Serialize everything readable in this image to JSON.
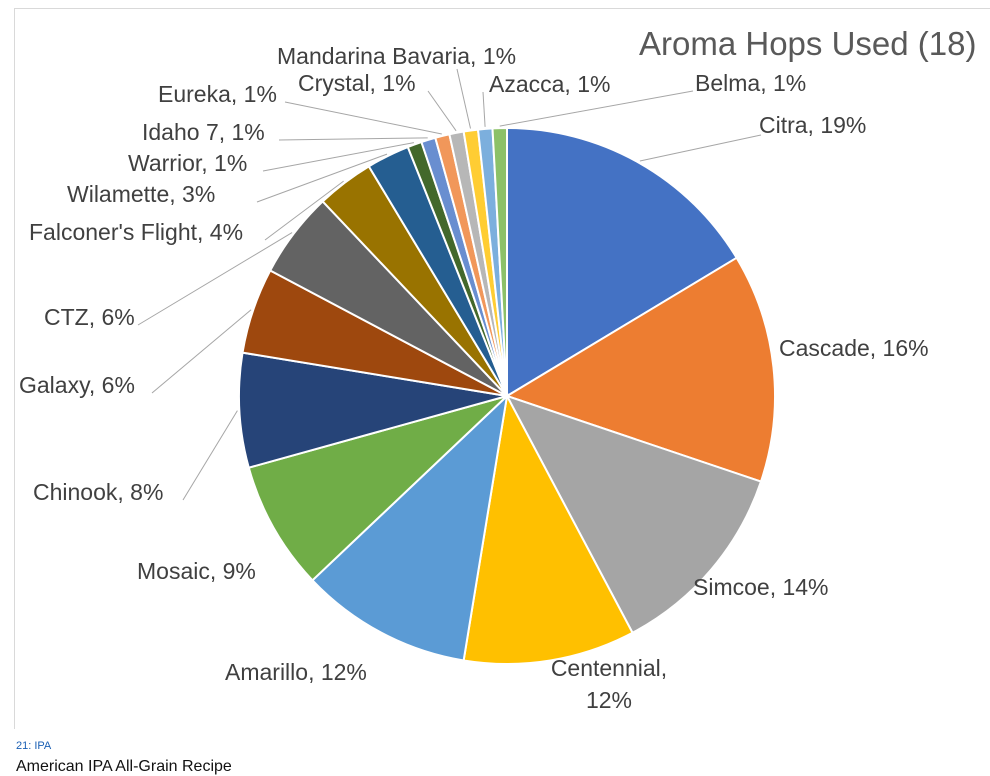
{
  "chart_data": {
    "type": "pie",
    "title": "Aroma Hops Used (18)",
    "slices": [
      {
        "label": "Citra",
        "value": 19,
        "color": "#4472C4",
        "text": "Citra, 19%"
      },
      {
        "label": "Cascade",
        "value": 16,
        "color": "#ED7D31",
        "text": "Cascade, 16%"
      },
      {
        "label": "Simcoe",
        "value": 14,
        "color": "#A5A5A5",
        "text": "Simcoe, 14%"
      },
      {
        "label": "Centennial",
        "value": 12,
        "color": "#FFC000",
        "text": "Centennial,\n12%"
      },
      {
        "label": "Amarillo",
        "value": 12,
        "color": "#5B9BD5",
        "text": "Amarillo, 12%"
      },
      {
        "label": "Mosaic",
        "value": 9,
        "color": "#70AD47",
        "text": "Mosaic, 9%"
      },
      {
        "label": "Chinook",
        "value": 8,
        "color": "#264478",
        "text": "Chinook, 8%"
      },
      {
        "label": "Galaxy",
        "value": 6,
        "color": "#9E480E",
        "text": "Galaxy, 6%"
      },
      {
        "label": "CTZ",
        "value": 6,
        "color": "#636363",
        "text": "CTZ, 6%"
      },
      {
        "label": "Falconer's Flight",
        "value": 4,
        "color": "#997300",
        "text": "Falconer's Flight, 4%"
      },
      {
        "label": "Wilamette",
        "value": 3,
        "color": "#255E91",
        "text": "Wilamette, 3%"
      },
      {
        "label": "Warrior",
        "value": 1,
        "color": "#43682B",
        "text": "Warrior, 1%"
      },
      {
        "label": "Idaho 7",
        "value": 1,
        "color": "#698ED0",
        "text": "Idaho 7, 1%"
      },
      {
        "label": "Eureka",
        "value": 1,
        "color": "#F1975A",
        "text": "Eureka, 1%"
      },
      {
        "label": "Crystal",
        "value": 1,
        "color": "#B7B7B7",
        "text": "Crystal, 1%"
      },
      {
        "label": "Mandarina Bavaria",
        "value": 1,
        "color": "#FFCD33",
        "text": "Mandarina Bavaria, 1%"
      },
      {
        "label": "Azacca",
        "value": 1,
        "color": "#7CAFDD",
        "text": "Azacca, 1%"
      },
      {
        "label": "Belma",
        "value": 1,
        "color": "#8CC168",
        "text": "Belma, 1%"
      }
    ]
  },
  "caption": {
    "category": "21: IPA",
    "title": "American IPA All-Grain Recipe"
  }
}
